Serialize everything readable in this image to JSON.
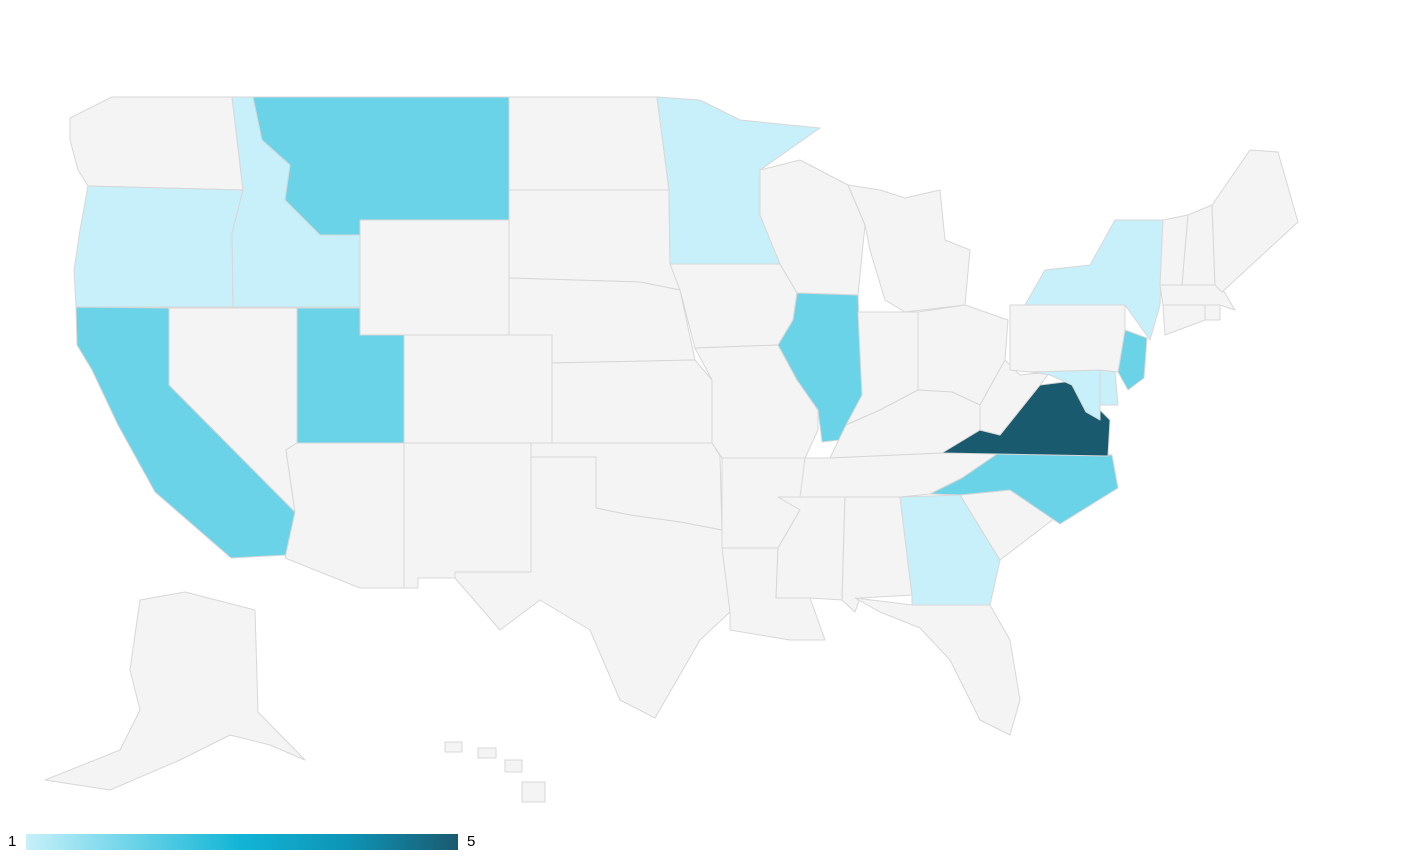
{
  "map": {
    "region": "United States",
    "level": "state",
    "metric_unit": "count",
    "default_fill": "#f4f4f4",
    "border_color": "#d7d7d7",
    "color_scale": {
      "min": 1,
      "max": 5,
      "stops": [
        "#c7f0fa",
        "#6ad3e7",
        "#11b4d6",
        "#0e93b5",
        "#1a5a6f"
      ]
    },
    "values": {
      "WA": null,
      "OR": 1,
      "CA": 2,
      "ID": 1,
      "NV": null,
      "UT": 2,
      "AZ": null,
      "MT": 2,
      "WY": null,
      "CO": null,
      "NM": null,
      "ND": null,
      "SD": null,
      "NE": null,
      "KS": null,
      "OK": null,
      "TX": null,
      "MN": 1,
      "IA": null,
      "MO": null,
      "AR": null,
      "LA": null,
      "WI": null,
      "IL": 2,
      "MI": null,
      "IN": null,
      "OH": null,
      "KY": null,
      "TN": null,
      "MS": null,
      "AL": null,
      "GA": 1,
      "FL": null,
      "SC": null,
      "NC": 2,
      "VA": 5,
      "WV": null,
      "MD": 1,
      "DE": 1,
      "NJ": 2,
      "PA": null,
      "NY": 1,
      "CT": null,
      "RI": null,
      "MA": null,
      "VT": null,
      "NH": null,
      "ME": null,
      "AK": null,
      "HI": null
    }
  },
  "legend": {
    "min_label": "1",
    "max_label": "5"
  }
}
